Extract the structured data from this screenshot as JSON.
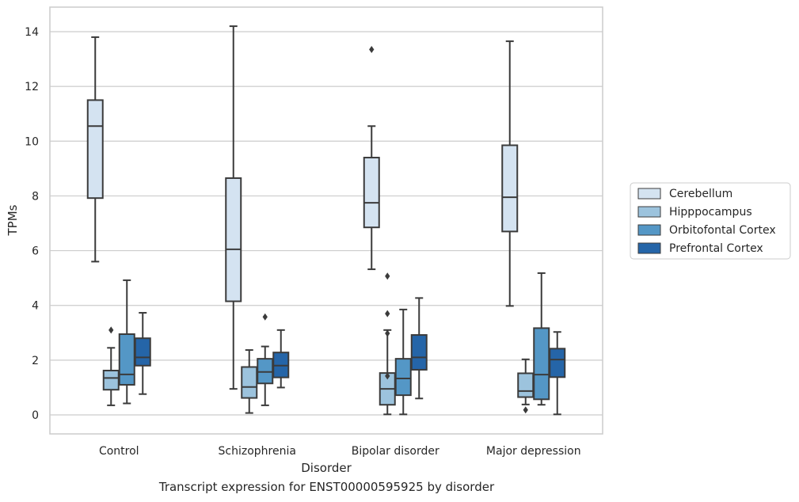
{
  "chart_data": {
    "type": "box",
    "xlabel": "Disorder",
    "ylabel": "TPMs",
    "caption": "Transcript expression for ENST00000595925 by disorder",
    "categories": [
      "Control",
      "Schizophrenia",
      "Bipolar disorder",
      "Major depression"
    ],
    "ylim": [
      -0.7,
      14.8
    ],
    "yticks": [
      0,
      2,
      4,
      6,
      8,
      10,
      12,
      14
    ],
    "grid": "horizontal",
    "legend_position": "right",
    "series": [
      {
        "name": "Cerebellum",
        "color": "#d4e3f1",
        "boxes": [
          {
            "whisker_low": 5.6,
            "q1": 7.92,
            "median": 10.55,
            "q3": 11.5,
            "whisker_high": 13.8,
            "outliers": []
          },
          {
            "whisker_low": 0.95,
            "q1": 4.15,
            "median": 6.05,
            "q3": 8.65,
            "whisker_high": 14.2,
            "outliers": []
          },
          {
            "whisker_low": 5.32,
            "q1": 6.85,
            "median": 7.75,
            "q3": 9.4,
            "whisker_high": 10.55,
            "outliers": [
              13.35
            ]
          },
          {
            "whisker_low": 3.98,
            "q1": 6.7,
            "median": 7.95,
            "q3": 9.85,
            "whisker_high": 13.65,
            "outliers": []
          }
        ]
      },
      {
        "name": "Hipppocampus",
        "color": "#9cc3dd",
        "boxes": [
          {
            "whisker_low": 0.35,
            "q1": 0.92,
            "median": 1.35,
            "q3": 1.62,
            "whisker_high": 2.45,
            "outliers": [
              3.1
            ]
          },
          {
            "whisker_low": 0.07,
            "q1": 0.62,
            "median": 1.02,
            "q3": 1.75,
            "whisker_high": 2.37,
            "outliers": []
          },
          {
            "whisker_low": 0.02,
            "q1": 0.37,
            "median": 0.95,
            "q3": 1.53,
            "whisker_high": 3.1,
            "outliers": [
              1.42,
              2.98,
              3.7,
              5.07
            ]
          },
          {
            "whisker_low": 0.38,
            "q1": 0.65,
            "median": 0.87,
            "q3": 1.52,
            "whisker_high": 2.03,
            "outliers": [
              0.18
            ]
          }
        ]
      },
      {
        "name": "Orbitofontal Cortex",
        "color": "#5497c6",
        "boxes": [
          {
            "whisker_low": 0.42,
            "q1": 1.1,
            "median": 1.48,
            "q3": 2.95,
            "whisker_high": 4.92,
            "outliers": []
          },
          {
            "whisker_low": 0.35,
            "q1": 1.15,
            "median": 1.57,
            "q3": 2.05,
            "whisker_high": 2.5,
            "outliers": [
              3.58
            ]
          },
          {
            "whisker_low": 0.02,
            "q1": 0.72,
            "median": 1.33,
            "q3": 2.05,
            "whisker_high": 3.85,
            "outliers": []
          },
          {
            "whisker_low": 0.37,
            "q1": 0.57,
            "median": 1.47,
            "q3": 3.17,
            "whisker_high": 5.18,
            "outliers": []
          }
        ]
      },
      {
        "name": "Prefrontal Cortex",
        "color": "#2565a8",
        "boxes": [
          {
            "whisker_low": 0.76,
            "q1": 1.8,
            "median": 2.1,
            "q3": 2.8,
            "whisker_high": 3.73,
            "outliers": []
          },
          {
            "whisker_low": 1.0,
            "q1": 1.37,
            "median": 1.8,
            "q3": 2.28,
            "whisker_high": 3.1,
            "outliers": []
          },
          {
            "whisker_low": 0.6,
            "q1": 1.65,
            "median": 2.1,
            "q3": 2.92,
            "whisker_high": 4.27,
            "outliers": []
          },
          {
            "whisker_low": 0.02,
            "q1": 1.38,
            "median": 2.02,
            "q3": 2.42,
            "whisker_high": 3.03,
            "outliers": []
          }
        ]
      }
    ]
  }
}
